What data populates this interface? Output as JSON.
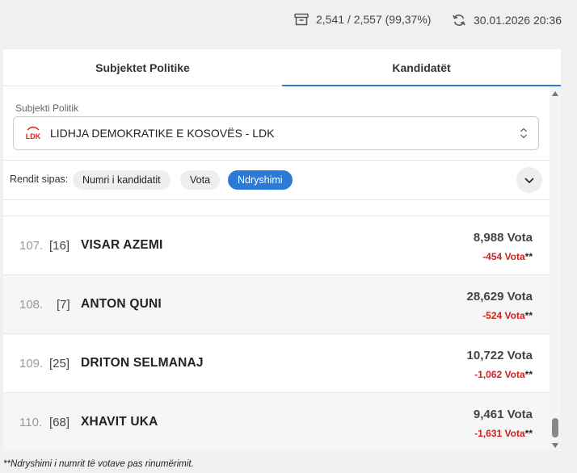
{
  "header": {
    "counted": "2,541 / 2,557 (99,37%)",
    "updated": "30.01.2026 20:36"
  },
  "tabs": [
    {
      "label": "Subjektet Politike",
      "active": false
    },
    {
      "label": "Kandidatët",
      "active": true
    }
  ],
  "filter": {
    "label": "Subjekti Politik",
    "selected": "LIDHJA DEMOKRATIKE E KOSOVËS - LDK",
    "logo_text": "LDK"
  },
  "sort": {
    "label": "Rendit sipas:",
    "options": [
      "Numri i kandidatit",
      "Vota",
      "Ndryshimi"
    ],
    "active": "Ndryshimi"
  },
  "candidates": [
    {
      "rank": "107.",
      "ballot": "[16]",
      "name": "VISAR AZEMI",
      "votes": "8,988 Vota",
      "change": "-454 Vota",
      "mark": "**"
    },
    {
      "rank": "108.",
      "ballot": "[7]",
      "name": "ANTON QUNI",
      "votes": "28,629 Vota",
      "change": "-524 Vota",
      "mark": "**"
    },
    {
      "rank": "109.",
      "ballot": "[25]",
      "name": "DRITON SELMANAJ",
      "votes": "10,722 Vota",
      "change": "-1,062 Vota",
      "mark": "**"
    },
    {
      "rank": "110.",
      "ballot": "[68]",
      "name": "XHAVIT UKA",
      "votes": "9,461 Vota",
      "change": "-1,631 Vota",
      "mark": "**"
    }
  ],
  "footnote": "**Ndryshimi i numrit të votave pas rinumërimit.",
  "colors": {
    "accent": "#2b7bd6",
    "negative": "#d0211c",
    "logo_red": "#d9261c"
  }
}
